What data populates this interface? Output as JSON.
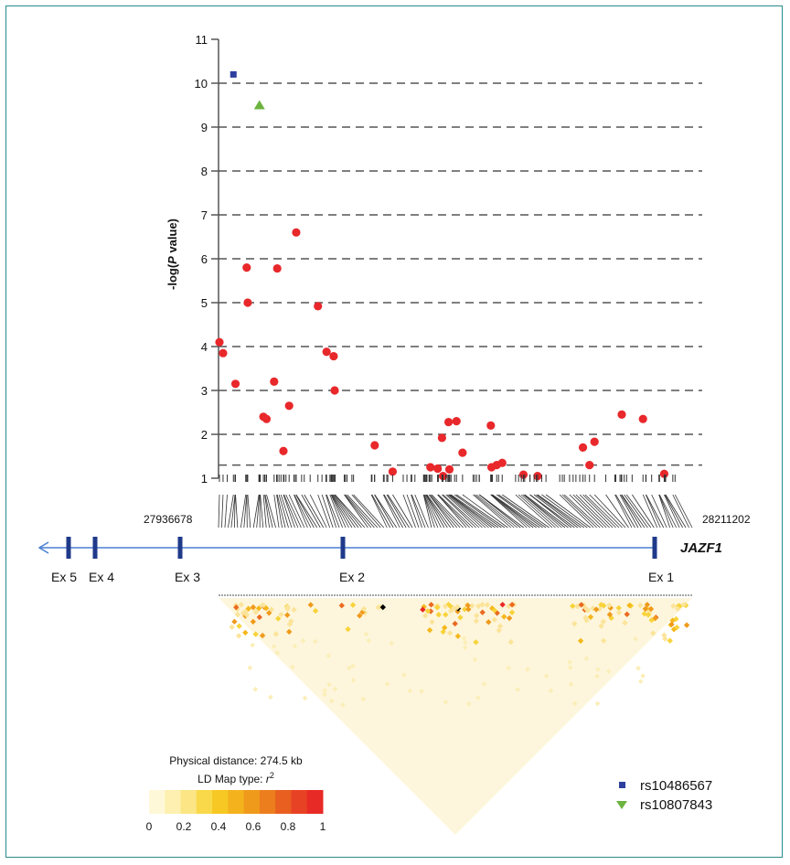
{
  "chart_data": {
    "type": "scatter",
    "ylabel": "-log(P value)",
    "ylim": [
      1,
      11
    ],
    "xlim": [
      27936678,
      28211202
    ],
    "y_ticks": [
      "1",
      "2",
      "3",
      "4",
      "5",
      "6",
      "7",
      "8",
      "9",
      "10",
      "11"
    ],
    "grid": "dashed horizontal",
    "threshold": 1.3,
    "series": [
      {
        "name": "rs10486567",
        "marker": "square",
        "color": "#2e3f9e",
        "points": [
          [
            27945300,
            10.2
          ]
        ]
      },
      {
        "name": "rs10807843",
        "marker": "triangle",
        "color": "#6db33f",
        "points": [
          [
            27960400,
            9.5
          ]
        ]
      },
      {
        "marker": "circle",
        "color": "#e8282b",
        "points": [
          [
            27937200,
            4.1
          ],
          [
            27939300,
            3.85
          ],
          [
            27946500,
            3.15
          ],
          [
            27953000,
            5.8
          ],
          [
            27953600,
            5.0
          ],
          [
            27962700,
            2.4
          ],
          [
            27964500,
            2.35
          ],
          [
            27968900,
            3.2
          ],
          [
            27970700,
            5.78
          ],
          [
            27974300,
            1.62
          ],
          [
            27977600,
            2.65
          ],
          [
            27981700,
            6.6
          ],
          [
            27994300,
            4.92
          ],
          [
            27999300,
            3.88
          ],
          [
            28003400,
            3.78
          ],
          [
            28004000,
            3.0
          ],
          [
            28027200,
            1.75
          ],
          [
            28037600,
            1.15
          ],
          [
            28059500,
            1.25
          ],
          [
            28063700,
            1.22
          ],
          [
            28066200,
            1.92
          ],
          [
            28066800,
            1.05
          ],
          [
            28070000,
            2.28
          ],
          [
            28070500,
            1.2
          ],
          [
            28074600,
            2.3
          ],
          [
            28078100,
            1.58
          ],
          [
            28094500,
            2.2
          ],
          [
            28094900,
            1.25
          ],
          [
            28097900,
            1.3
          ],
          [
            28101100,
            1.35
          ],
          [
            28113400,
            1.08
          ],
          [
            28121600,
            1.05
          ],
          [
            28147900,
            1.7
          ],
          [
            28151700,
            1.3
          ],
          [
            28154600,
            1.83
          ],
          [
            28170400,
            2.45
          ],
          [
            28182700,
            2.35
          ],
          [
            28195000,
            1.1
          ]
        ]
      }
    ]
  },
  "coords": {
    "start": "27936678",
    "end": "28211202"
  },
  "gene": {
    "name": "JAZF1",
    "exons": [
      "Ex 5",
      "Ex 4",
      "Ex 3",
      "Ex 2",
      "Ex 1"
    ]
  },
  "ld_map": {
    "distance": "Physical distance: 274.5 kb",
    "type_prefix": "LD Map type: ",
    "type_var": "r",
    "type_exp": "2",
    "scale_ticks": [
      "0",
      "0.2",
      "0.4",
      "0.6",
      "0.8",
      "1"
    ]
  },
  "legend": [
    {
      "label": "rs10486567",
      "marker": "square",
      "color": "#2e3f9e"
    },
    {
      "label": "rs10807843",
      "marker": "triangle-down",
      "color": "#6db33f"
    }
  ],
  "colors": {
    "point": "#e8282b",
    "gene_line": "#4a7fd4",
    "exon": "#1f3a8a",
    "ld_low": "#fdf6dc",
    "ld_mid": "#f7d21a",
    "ld_high": "#e82a26",
    "frame": "#2b8a8a"
  }
}
